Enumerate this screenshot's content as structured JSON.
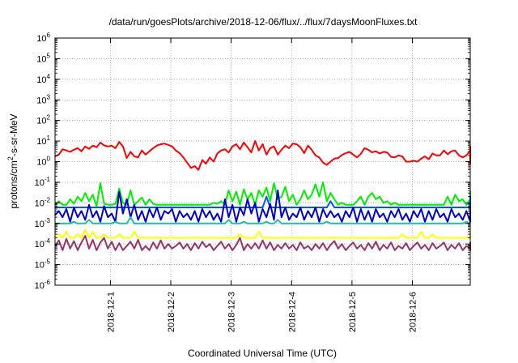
{
  "chart_data": {
    "type": "line",
    "title": "/data/run/goesPlots/archive/2018-12-06/flux/../flux/7daysMoonFluxes.txt",
    "xlabel": "Coordinated Universal Time (UTC)",
    "ylabel": "protons/cm2-s-sr-MeV",
    "ylabel_parts": {
      "base": "protons/cm",
      "sup": "2",
      "rest": "-s-sr-MeV"
    },
    "y_scale": "log",
    "y_decades": [
      {
        "base": "10",
        "exp": "-6",
        "value": 1e-06
      },
      {
        "base": "10",
        "exp": "-5",
        "value": 1e-05
      },
      {
        "base": "10",
        "exp": "-4",
        "value": 0.0001
      },
      {
        "base": "10",
        "exp": "-3",
        "value": 0.001
      },
      {
        "base": "10",
        "exp": "-2",
        "value": 0.01
      },
      {
        "base": "10",
        "exp": "-1",
        "value": 0.1
      },
      {
        "base": "10",
        "exp": "0",
        "value": 1
      },
      {
        "base": "10",
        "exp": "1",
        "value": 10
      },
      {
        "base": "10",
        "exp": "2",
        "value": 100
      },
      {
        "base": "10",
        "exp": "3",
        "value": 1000
      },
      {
        "base": "10",
        "exp": "4",
        "value": 10000
      },
      {
        "base": "10",
        "exp": "5",
        "value": 100000
      },
      {
        "base": "10",
        "exp": "6",
        "value": 1000000
      }
    ],
    "ylim": [
      1e-06,
      1000000.0
    ],
    "xlim": [
      "2018-11-30T02:00",
      "2018-12-06T23:00"
    ],
    "x_ticks": [
      "2018-12-1",
      "2018-12-2",
      "2018-12-3",
      "2018-12-4",
      "2018-12-5",
      "2018-12-6"
    ],
    "x_tick_dates": [
      "2018-12-01T00:00",
      "2018-12-02T00:00",
      "2018-12-03T00:00",
      "2018-12-04T00:00",
      "2018-12-05T00:00",
      "2018-12-06T00:00"
    ],
    "grid": "dotted",
    "legend": "none",
    "sample_interval_hours": 1.5,
    "series": [
      {
        "color": "#ff0000",
        "values": [
          1.8,
          2.2,
          4.0,
          3.5,
          3.0,
          3.8,
          4.5,
          3.2,
          5.5,
          4.2,
          6.0,
          5.0,
          8.5,
          6.2,
          5.5,
          6.0,
          4.5,
          9.0,
          5.5,
          1.5,
          3.0,
          1.8,
          1.6,
          3.5,
          2.2,
          3.2,
          4.5,
          6.0,
          7.0,
          7.5,
          6.5,
          5.5,
          3.5,
          2.6,
          1.6,
          0.9,
          0.5,
          0.6,
          0.4,
          1.2,
          0.8,
          1.6,
          1.0,
          2.5,
          3.5,
          4.0,
          2.8,
          5.5,
          7.0,
          4.0,
          8.5,
          5.0,
          2.8,
          10.0,
          3.5,
          7.0,
          2.2,
          4.5,
          5.5,
          2.2,
          3.8,
          6.0,
          4.5,
          7.5,
          7.0,
          5.0,
          2.6,
          6.0,
          3.8,
          2.0,
          1.6,
          0.9,
          0.7,
          1.0,
          1.4,
          1.5,
          2.1,
          2.6,
          3.0,
          2.2,
          1.6,
          2.4,
          4.5,
          3.8,
          2.8,
          3.2,
          2.5,
          3.0,
          2.8,
          1.7,
          1.6,
          2.0,
          1.8,
          1.0,
          1.0,
          1.1,
          1.0,
          1.4,
          1.8,
          1.3,
          2.5,
          2.0,
          2.0,
          3.5,
          2.3,
          3.2,
          3.5,
          2.0,
          1.6,
          2.0,
          3.5,
          1.6,
          1.5,
          1.7,
          1.2,
          1.6,
          1.6,
          1.3,
          1.0,
          0.9,
          0.8,
          0.9,
          0.8,
          1.2,
          1.4,
          2.2,
          4.5,
          3.5,
          5.0,
          3.2,
          5.5,
          4.5
        ]
      },
      {
        "color": "#00ee00",
        "values": [
          0.008,
          0.012,
          0.008,
          0.008,
          0.015,
          0.009,
          0.02,
          0.012,
          0.03,
          0.012,
          0.025,
          0.007,
          0.09,
          0.009,
          0.008,
          0.008,
          0.009,
          0.05,
          0.01,
          0.008,
          0.04,
          0.008,
          0.012,
          0.018,
          0.008,
          0.015,
          0.009,
          0.008,
          0.008,
          0.008,
          0.008,
          0.008,
          0.008,
          0.008,
          0.008,
          0.008,
          0.008,
          0.008,
          0.008,
          0.008,
          0.008,
          0.008,
          0.01,
          0.009,
          0.012,
          0.008,
          0.04,
          0.012,
          0.035,
          0.008,
          0.045,
          0.015,
          0.03,
          0.008,
          0.04,
          0.02,
          0.055,
          0.012,
          0.09,
          0.015,
          0.02,
          0.06,
          0.012,
          0.025,
          0.008,
          0.015,
          0.04,
          0.015,
          0.025,
          0.08,
          0.02,
          0.1,
          0.012,
          0.03,
          0.015,
          0.008,
          0.01,
          0.008,
          0.008,
          0.008,
          0.012,
          0.02,
          0.008,
          0.02,
          0.03,
          0.015,
          0.02,
          0.01,
          0.012,
          0.008,
          0.01,
          0.008,
          0.008,
          0.008,
          0.008,
          0.008,
          0.008,
          0.008,
          0.008,
          0.008,
          0.008,
          0.008,
          0.008,
          0.008,
          0.02,
          0.008,
          0.025,
          0.012,
          0.015,
          0.008,
          0.015,
          0.02,
          0.025,
          0.012,
          0.02,
          0.009,
          0.015,
          0.03,
          0.012,
          0.015,
          0.008,
          0.008,
          0.008,
          0.008,
          0.008,
          0.008,
          0.03,
          0.012,
          0.02,
          0.012,
          0.035,
          0.015
        ]
      },
      {
        "color": "#0055ff",
        "values": [
          0.006,
          0.006,
          0.006,
          0.006,
          0.006,
          0.006,
          0.006,
          0.006,
          0.006,
          0.006,
          0.006,
          0.006,
          0.006,
          0.006,
          0.006,
          0.006,
          0.006,
          0.006,
          0.006,
          0.006,
          0.006,
          0.006,
          0.006,
          0.006,
          0.006,
          0.006,
          0.006,
          0.006,
          0.006,
          0.006,
          0.006,
          0.006,
          0.006,
          0.006,
          0.006,
          0.006,
          0.006,
          0.006,
          0.006,
          0.006,
          0.006,
          0.006,
          0.006,
          0.006,
          0.006,
          0.006,
          0.006,
          0.006,
          0.006,
          0.006,
          0.006,
          0.006,
          0.006,
          0.006,
          0.006,
          0.006,
          0.02,
          0.006,
          0.006,
          0.006,
          0.006,
          0.006,
          0.006,
          0.006,
          0.006,
          0.006,
          0.006,
          0.006,
          0.006,
          0.006,
          0.006,
          0.006,
          0.006,
          0.012,
          0.006,
          0.006,
          0.006,
          0.006,
          0.006,
          0.006,
          0.006,
          0.006,
          0.006,
          0.006,
          0.006,
          0.006,
          0.006,
          0.006,
          0.006,
          0.006,
          0.006,
          0.006,
          0.006,
          0.006,
          0.006,
          0.006,
          0.006,
          0.006,
          0.006,
          0.006,
          0.006,
          0.006,
          0.006,
          0.006,
          0.006,
          0.006,
          0.006,
          0.006,
          0.006,
          0.006,
          0.006,
          0.006,
          0.006,
          0.006,
          0.006,
          0.006,
          0.006,
          0.006,
          0.006,
          0.006,
          0.006,
          0.006,
          0.006,
          0.006,
          0.006,
          0.02,
          0.006,
          0.006,
          0.02,
          0.006
        ]
      },
      {
        "color": "#0000cc",
        "values": [
          0.0025,
          0.004,
          0.002,
          0.005,
          0.0012,
          0.006,
          0.002,
          0.004,
          0.0015,
          0.008,
          0.002,
          0.004,
          0.0012,
          0.007,
          0.002,
          0.003,
          0.0012,
          0.035,
          0.003,
          0.015,
          0.002,
          0.008,
          0.0015,
          0.004,
          0.0012,
          0.005,
          0.002,
          0.006,
          0.0015,
          0.004,
          0.003,
          0.005,
          0.0012,
          0.004,
          0.002,
          0.003,
          0.0015,
          0.004,
          0.0012,
          0.005,
          0.002,
          0.004,
          0.0015,
          0.003,
          0.0012,
          0.015,
          0.002,
          0.008,
          0.0012,
          0.006,
          0.0025,
          0.015,
          0.003,
          0.01,
          0.0012,
          0.005,
          0.002,
          0.009,
          0.0015,
          0.04,
          0.002,
          0.006,
          0.0015,
          0.003,
          0.002,
          0.006,
          0.0015,
          0.004,
          0.002,
          0.006,
          0.0012,
          0.005,
          0.002,
          0.004,
          0.002,
          0.003,
          0.0012,
          0.004,
          0.002,
          0.006,
          0.0012,
          0.005,
          0.0015,
          0.004,
          0.0012,
          0.005,
          0.002,
          0.003,
          0.0012,
          0.004,
          0.002,
          0.005,
          0.0015,
          0.003,
          0.0012,
          0.004,
          0.002,
          0.005,
          0.0012,
          0.004,
          0.0015,
          0.005,
          0.002,
          0.003,
          0.0012,
          0.005,
          0.002,
          0.003,
          0.0015,
          0.004,
          0.0012,
          0.005,
          0.002,
          0.003,
          0.0012,
          0.004,
          0.002,
          0.004,
          0.0012,
          0.006,
          0.0015,
          0.003,
          0.0012,
          0.004,
          0.0015,
          0.005,
          0.002,
          0.004,
          0.0015,
          0.004
        ]
      },
      {
        "color": "#22bbaa",
        "values": [
          0.001,
          0.001,
          0.001,
          0.001,
          0.001,
          0.0012,
          0.001,
          0.001,
          0.001,
          0.0015,
          0.001,
          0.001,
          0.001,
          0.001,
          0.001,
          0.001,
          0.0012,
          0.001,
          0.001,
          0.001,
          0.002,
          0.001,
          0.001,
          0.001,
          0.001,
          0.001,
          0.001,
          0.001,
          0.001,
          0.001,
          0.001,
          0.001,
          0.001,
          0.001,
          0.001,
          0.001,
          0.001,
          0.001,
          0.001,
          0.001,
          0.001,
          0.001,
          0.001,
          0.001,
          0.001,
          0.001,
          0.0015,
          0.001,
          0.001,
          0.001,
          0.0012,
          0.001,
          0.001,
          0.001,
          0.001,
          0.001,
          0.0012,
          0.001,
          0.001,
          0.0015,
          0.001,
          0.001,
          0.001,
          0.001,
          0.001,
          0.001,
          0.001,
          0.001,
          0.001,
          0.001,
          0.001,
          0.001,
          0.0012,
          0.001,
          0.001,
          0.001,
          0.001,
          0.001,
          0.001,
          0.001,
          0.001,
          0.001,
          0.001,
          0.001,
          0.001,
          0.001,
          0.001,
          0.001,
          0.001,
          0.001,
          0.001,
          0.001,
          0.001,
          0.001,
          0.001,
          0.001,
          0.001,
          0.001,
          0.001,
          0.001,
          0.001,
          0.001,
          0.001,
          0.001,
          0.001,
          0.001,
          0.001,
          0.001,
          0.001,
          0.0012,
          0.001,
          0.001,
          0.001,
          0.001,
          0.001,
          0.001,
          0.001,
          0.001,
          0.001,
          0.001,
          0.001,
          0.001,
          0.001,
          0.001,
          0.001,
          0.001,
          0.001,
          0.001,
          0.001,
          0.001
        ]
      },
      {
        "color": "#ffff00",
        "values": [
          0.0002,
          0.0003,
          0.0002,
          0.0004,
          0.0002,
          0.0002,
          0.0003,
          0.0002,
          0.0005,
          0.0002,
          0.0004,
          0.0002,
          0.0002,
          0.0003,
          0.0002,
          0.0002,
          0.0002,
          0.0003,
          0.0002,
          0.0002,
          0.0002,
          0.0004,
          0.0002,
          0.0002,
          0.0002,
          0.0002,
          0.0002,
          0.0002,
          0.0002,
          0.0002,
          0.0002,
          0.0002,
          0.0002,
          0.0002,
          0.0002,
          0.0002,
          0.0002,
          0.0002,
          0.0002,
          0.0002,
          0.0002,
          0.0002,
          0.0002,
          0.0002,
          0.0002,
          0.0002,
          0.0002,
          0.0002,
          0.0002,
          0.0003,
          0.0002,
          0.0002,
          0.0002,
          0.0002,
          0.0004,
          0.0002,
          0.0002,
          0.0002,
          0.0002,
          0.0002,
          0.0002,
          0.0002,
          0.0002,
          0.0002,
          0.0002,
          0.0002,
          0.0002,
          0.0002,
          0.0002,
          0.0002,
          0.0002,
          0.0002,
          0.0002,
          0.0002,
          0.0002,
          0.0002,
          0.0002,
          0.0002,
          0.0002,
          0.0002,
          0.0002,
          0.0002,
          0.0002,
          0.0002,
          0.0002,
          0.0002,
          0.0002,
          0.0002,
          0.0002,
          0.0002,
          0.0002,
          0.0002,
          0.0003,
          0.0002,
          0.0002,
          0.0002,
          0.0002,
          0.0004,
          0.0002,
          0.0002,
          0.0003,
          0.0002,
          0.0002,
          0.0002,
          0.0002,
          0.0002,
          0.0002,
          0.0002,
          0.0002,
          0.0002,
          0.0002,
          0.0002,
          0.0002,
          0.0002,
          0.0002,
          0.0002,
          0.0002,
          0.0002,
          0.0002,
          0.0002,
          0.0002,
          0.0002,
          0.0003,
          0.0002,
          0.0002,
          0.0002,
          0.0003,
          0.0002,
          0.0002,
          0.0002
        ]
      },
      {
        "color": "#993366",
        "values": [
          8e-05,
          0.00015,
          5e-05,
          0.00018,
          6e-05,
          0.00014,
          5e-05,
          0.00012,
          0.00025,
          6e-05,
          0.00016,
          5e-05,
          0.00012,
          0.0002,
          6e-05,
          0.00013,
          5e-05,
          0.00011,
          5e-05,
          8e-05,
          0.00013,
          6e-05,
          0.00016,
          5e-05,
          8e-05,
          5e-05,
          0.00012,
          6e-05,
          0.00015,
          6e-05,
          0.0001,
          6e-05,
          8e-05,
          0.00012,
          6e-05,
          0.0001,
          5e-05,
          0.00011,
          6e-05,
          0.00013,
          7e-05,
          0.0001,
          5e-05,
          8e-05,
          0.00013,
          6e-05,
          0.0001,
          5e-05,
          9e-05,
          0.0002,
          5e-05,
          0.0001,
          6e-05,
          0.00011,
          6e-05,
          0.00015,
          6e-05,
          0.00012,
          5e-05,
          9e-05,
          6e-05,
          0.00011,
          6e-05,
          9e-05,
          5e-05,
          0.00012,
          6e-05,
          8e-05,
          5e-05,
          0.0001,
          6e-05,
          0.00011,
          5e-05,
          9e-05,
          0.00014,
          6e-05,
          0.0001,
          5e-05,
          8e-05,
          0.00012,
          6e-05,
          9e-05,
          5e-05,
          0.00011,
          6e-05,
          0.00013,
          5e-05,
          9e-05,
          6e-05,
          0.00012,
          5e-05,
          8e-05,
          6e-05,
          0.00011,
          5e-05,
          8e-05,
          0.00012,
          6e-05,
          9e-05,
          5e-05,
          0.00011,
          6e-05,
          8e-05,
          0.00012,
          5e-05,
          9e-05,
          6e-05,
          0.00011,
          5e-05,
          8e-05,
          6e-05,
          0.0001,
          5e-05,
          8e-05,
          6e-05,
          0.00011,
          5e-05,
          9e-05,
          6e-05,
          0.00012,
          5e-05,
          8e-05,
          6e-05,
          0.0001,
          5e-05,
          8e-05,
          6e-05,
          0.0001,
          6e-05,
          0.00012
        ]
      }
    ]
  }
}
